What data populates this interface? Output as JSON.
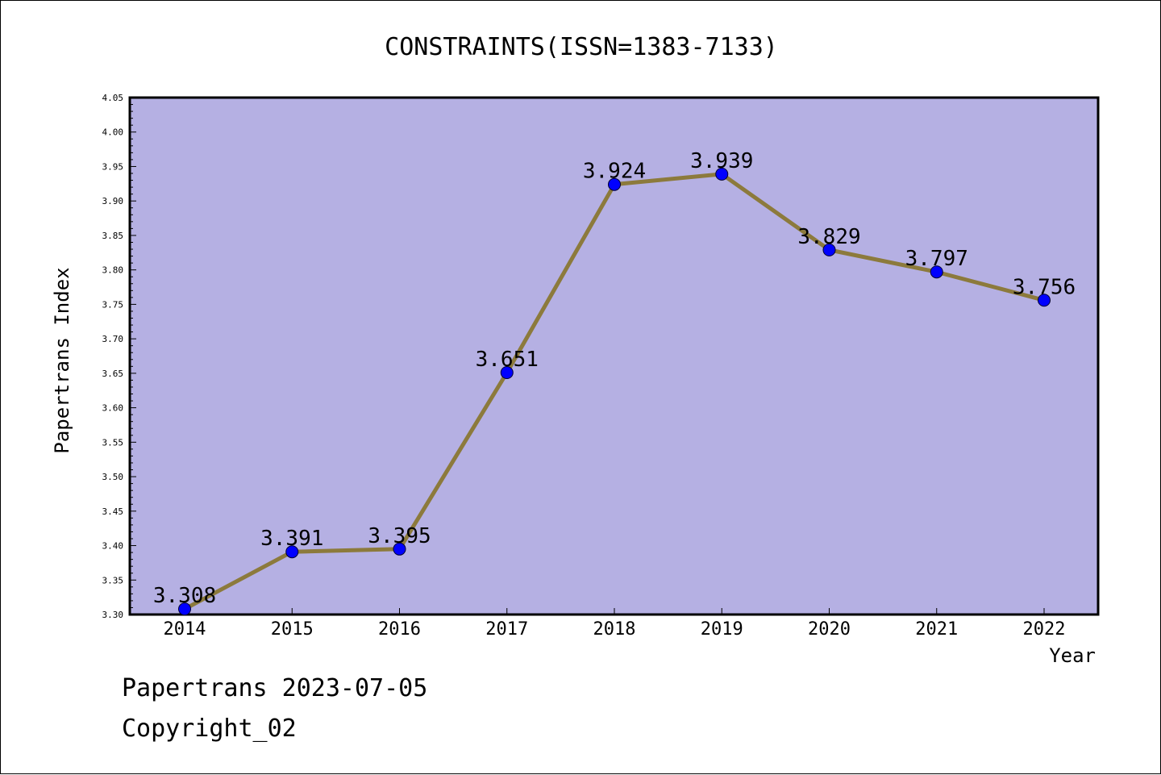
{
  "chart_data": {
    "type": "line",
    "title": "CONSTRAINTS(ISSN=1383-7133)",
    "xlabel": "Year",
    "ylabel": "Papertrans Index",
    "ylim": [
      3.3,
      4.05
    ],
    "y_ticks": [
      "3.30",
      "3.35",
      "3.40",
      "3.45",
      "3.50",
      "3.55",
      "3.60",
      "3.65",
      "3.70",
      "3.75",
      "3.80",
      "3.85",
      "3.90",
      "3.95",
      "4.00",
      "4.05"
    ],
    "categories": [
      "2014",
      "2015",
      "2016",
      "2017",
      "2018",
      "2019",
      "2020",
      "2021",
      "2022"
    ],
    "values": [
      3.308,
      3.391,
      3.395,
      3.651,
      3.924,
      3.939,
      3.829,
      3.797,
      3.756
    ],
    "value_labels": [
      "3.308",
      "3.391",
      "3.395",
      "3.651",
      "3.924",
      "3.939",
      "3.829",
      "3.797",
      "3.756"
    ],
    "grid": false,
    "colors": {
      "plot_background": "#b5b0e3",
      "line": "#8c7a3c",
      "marker": "#0000ff"
    }
  },
  "footer": {
    "line1": "Papertrans 2023-07-05",
    "line2": "Copyright_02"
  }
}
